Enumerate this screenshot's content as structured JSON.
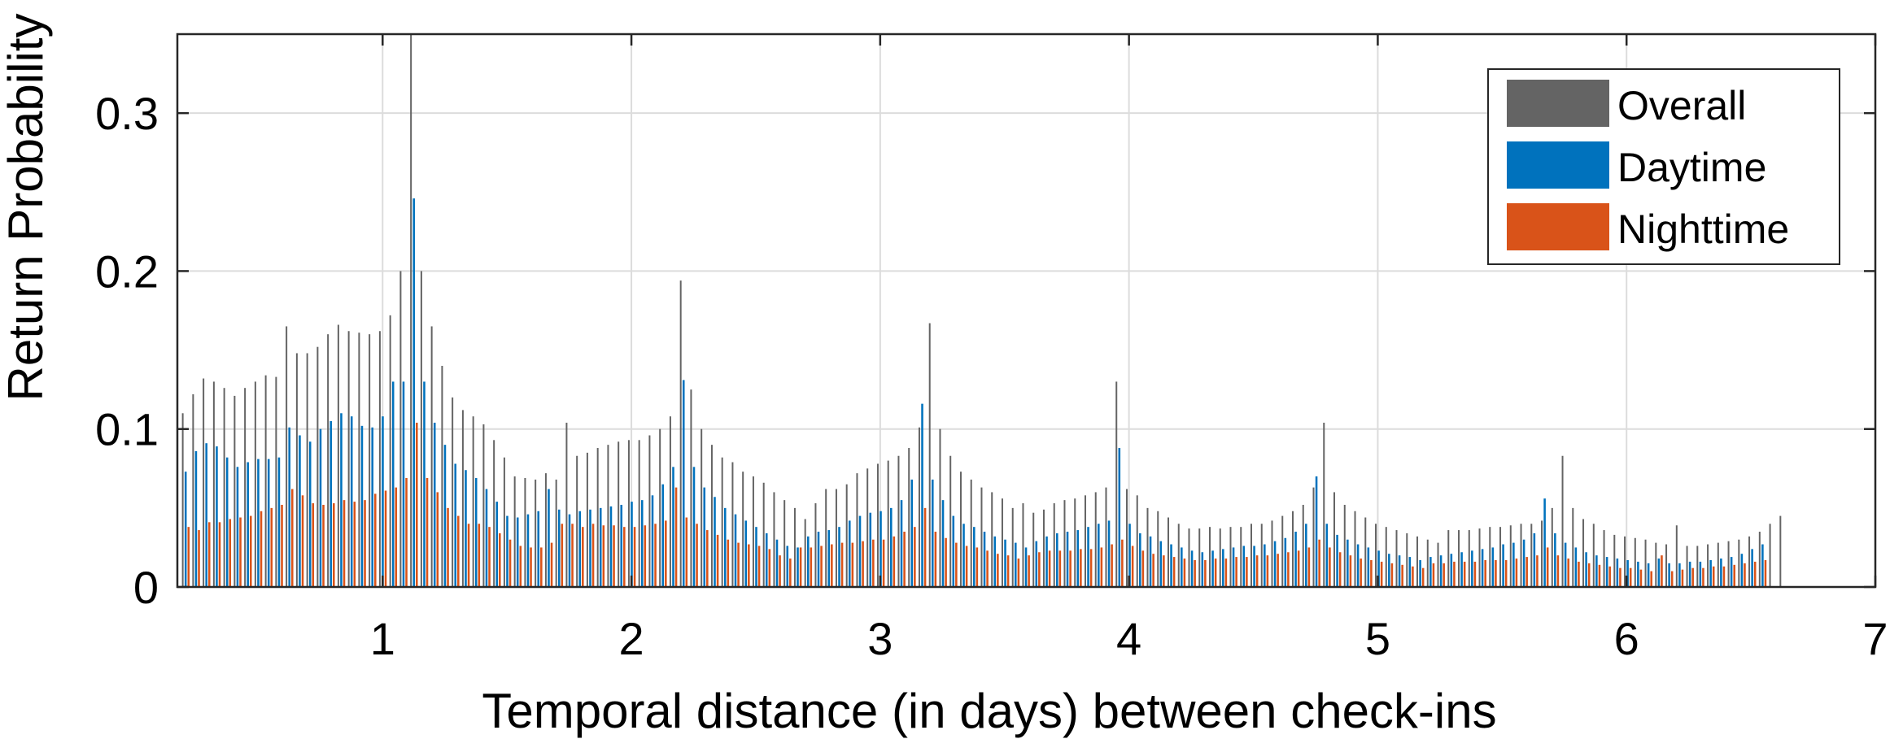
{
  "chart_data": {
    "type": "bar",
    "xlabel": "Temporal distance (in days) between check-ins",
    "ylabel": "Return Probability",
    "xlim": [
      0.175,
      7.0
    ],
    "ylim": [
      0,
      0.35
    ],
    "x_ticks": [
      1,
      2,
      3,
      4,
      5,
      6,
      7
    ],
    "x_tick_labels": [
      "1",
      "2",
      "3",
      "4",
      "5",
      "6",
      "7"
    ],
    "y_ticks": [
      0,
      0.1,
      0.2,
      0.3
    ],
    "y_tick_labels": [
      "0",
      "0.1",
      "0.2",
      "0.3"
    ],
    "grid": true,
    "legend_position": "top-right",
    "bin_width_days": 0.0417,
    "x_start": 0.2083,
    "colors": {
      "Overall": "#646464",
      "Daytime": "#0072BD",
      "Nighttime": "#D95319"
    },
    "series": [
      {
        "name": "Overall",
        "values": [
          0.11,
          0.122,
          0.132,
          0.13,
          0.126,
          0.121,
          0.126,
          0.13,
          0.134,
          0.133,
          0.165,
          0.148,
          0.148,
          0.152,
          0.16,
          0.166,
          0.162,
          0.161,
          0.16,
          0.162,
          0.172,
          0.2,
          0.35,
          0.2,
          0.165,
          0.14,
          0.12,
          0.112,
          0.108,
          0.103,
          0.093,
          0.082,
          0.07,
          0.069,
          0.068,
          0.072,
          0.068,
          0.104,
          0.083,
          0.085,
          0.088,
          0.09,
          0.092,
          0.093,
          0.093,
          0.096,
          0.1,
          0.108,
          0.194,
          0.125,
          0.1,
          0.09,
          0.082,
          0.079,
          0.073,
          0.07,
          0.066,
          0.06,
          0.055,
          0.05,
          0.043,
          0.053,
          0.062,
          0.062,
          0.065,
          0.072,
          0.075,
          0.078,
          0.08,
          0.083,
          0.088,
          0.101,
          0.167,
          0.1,
          0.083,
          0.073,
          0.068,
          0.063,
          0.06,
          0.056,
          0.05,
          0.053,
          0.047,
          0.049,
          0.053,
          0.055,
          0.056,
          0.058,
          0.06,
          0.063,
          0.13,
          0.062,
          0.058,
          0.05,
          0.048,
          0.044,
          0.04,
          0.037,
          0.037,
          0.038,
          0.037,
          0.038,
          0.038,
          0.04,
          0.04,
          0.042,
          0.045,
          0.048,
          0.052,
          0.063,
          0.104,
          0.06,
          0.052,
          0.048,
          0.044,
          0.04,
          0.038,
          0.036,
          0.034,
          0.032,
          0.03,
          0.028,
          0.036,
          0.036,
          0.036,
          0.037,
          0.038,
          0.038,
          0.039,
          0.04,
          0.04,
          0.042,
          0.05,
          0.083,
          0.05,
          0.043,
          0.04,
          0.036,
          0.033,
          0.032,
          0.031,
          0.03,
          0.028,
          0.027,
          0.039,
          0.026,
          0.026,
          0.027,
          0.028,
          0.029,
          0.03,
          0.032,
          0.035,
          0.04,
          0.045
        ]
      },
      {
        "name": "Daytime",
        "values": [
          0.073,
          0.086,
          0.091,
          0.089,
          0.082,
          0.076,
          0.079,
          0.081,
          0.081,
          0.082,
          0.101,
          0.096,
          0.092,
          0.1,
          0.105,
          0.11,
          0.108,
          0.102,
          0.101,
          0.108,
          0.13,
          0.13,
          0.246,
          0.13,
          0.104,
          0.09,
          0.078,
          0.074,
          0.069,
          0.062,
          0.054,
          0.045,
          0.044,
          0.046,
          0.048,
          0.062,
          0.049,
          0.046,
          0.048,
          0.049,
          0.05,
          0.051,
          0.052,
          0.054,
          0.055,
          0.058,
          0.065,
          0.076,
          0.131,
          0.076,
          0.063,
          0.057,
          0.05,
          0.046,
          0.042,
          0.038,
          0.034,
          0.03,
          0.026,
          0.025,
          0.032,
          0.035,
          0.036,
          0.038,
          0.042,
          0.045,
          0.047,
          0.048,
          0.05,
          0.055,
          0.068,
          0.116,
          0.068,
          0.055,
          0.045,
          0.04,
          0.038,
          0.035,
          0.032,
          0.03,
          0.028,
          0.025,
          0.029,
          0.032,
          0.034,
          0.035,
          0.036,
          0.038,
          0.04,
          0.042,
          0.088,
          0.04,
          0.034,
          0.032,
          0.029,
          0.027,
          0.025,
          0.023,
          0.022,
          0.023,
          0.024,
          0.025,
          0.026,
          0.026,
          0.027,
          0.029,
          0.031,
          0.035,
          0.04,
          0.07,
          0.04,
          0.033,
          0.03,
          0.027,
          0.025,
          0.023,
          0.021,
          0.02,
          0.019,
          0.017,
          0.019,
          0.02,
          0.021,
          0.022,
          0.023,
          0.024,
          0.025,
          0.027,
          0.028,
          0.03,
          0.034,
          0.056,
          0.034,
          0.028,
          0.025,
          0.022,
          0.02,
          0.019,
          0.018,
          0.017,
          0.016,
          0.015,
          0.018,
          0.015,
          0.015,
          0.016,
          0.016,
          0.017,
          0.018,
          0.019,
          0.021,
          0.024,
          0.027
        ]
      },
      {
        "name": "Nighttime",
        "values": [
          0.038,
          0.036,
          0.041,
          0.041,
          0.043,
          0.044,
          0.045,
          0.048,
          0.05,
          0.052,
          0.062,
          0.058,
          0.053,
          0.052,
          0.053,
          0.055,
          0.054,
          0.055,
          0.059,
          0.061,
          0.063,
          0.069,
          0.104,
          0.069,
          0.06,
          0.05,
          0.045,
          0.04,
          0.04,
          0.038,
          0.034,
          0.03,
          0.026,
          0.025,
          0.025,
          0.028,
          0.04,
          0.04,
          0.038,
          0.04,
          0.039,
          0.039,
          0.038,
          0.038,
          0.039,
          0.04,
          0.042,
          0.063,
          0.044,
          0.04,
          0.036,
          0.033,
          0.03,
          0.028,
          0.027,
          0.026,
          0.024,
          0.02,
          0.018,
          0.025,
          0.025,
          0.026,
          0.027,
          0.028,
          0.028,
          0.029,
          0.03,
          0.03,
          0.032,
          0.035,
          0.038,
          0.05,
          0.035,
          0.031,
          0.028,
          0.026,
          0.025,
          0.023,
          0.021,
          0.02,
          0.018,
          0.02,
          0.022,
          0.023,
          0.023,
          0.023,
          0.024,
          0.024,
          0.025,
          0.027,
          0.03,
          0.026,
          0.023,
          0.021,
          0.02,
          0.019,
          0.018,
          0.017,
          0.017,
          0.018,
          0.018,
          0.019,
          0.019,
          0.02,
          0.02,
          0.021,
          0.022,
          0.023,
          0.025,
          0.03,
          0.025,
          0.022,
          0.02,
          0.018,
          0.017,
          0.016,
          0.015,
          0.014,
          0.013,
          0.012,
          0.015,
          0.015,
          0.016,
          0.016,
          0.016,
          0.017,
          0.017,
          0.017,
          0.018,
          0.019,
          0.02,
          0.025,
          0.02,
          0.018,
          0.016,
          0.015,
          0.014,
          0.013,
          0.012,
          0.012,
          0.011,
          0.01,
          0.02,
          0.01,
          0.011,
          0.012,
          0.012,
          0.013,
          0.013,
          0.014,
          0.015,
          0.016,
          0.017
        ]
      }
    ]
  }
}
